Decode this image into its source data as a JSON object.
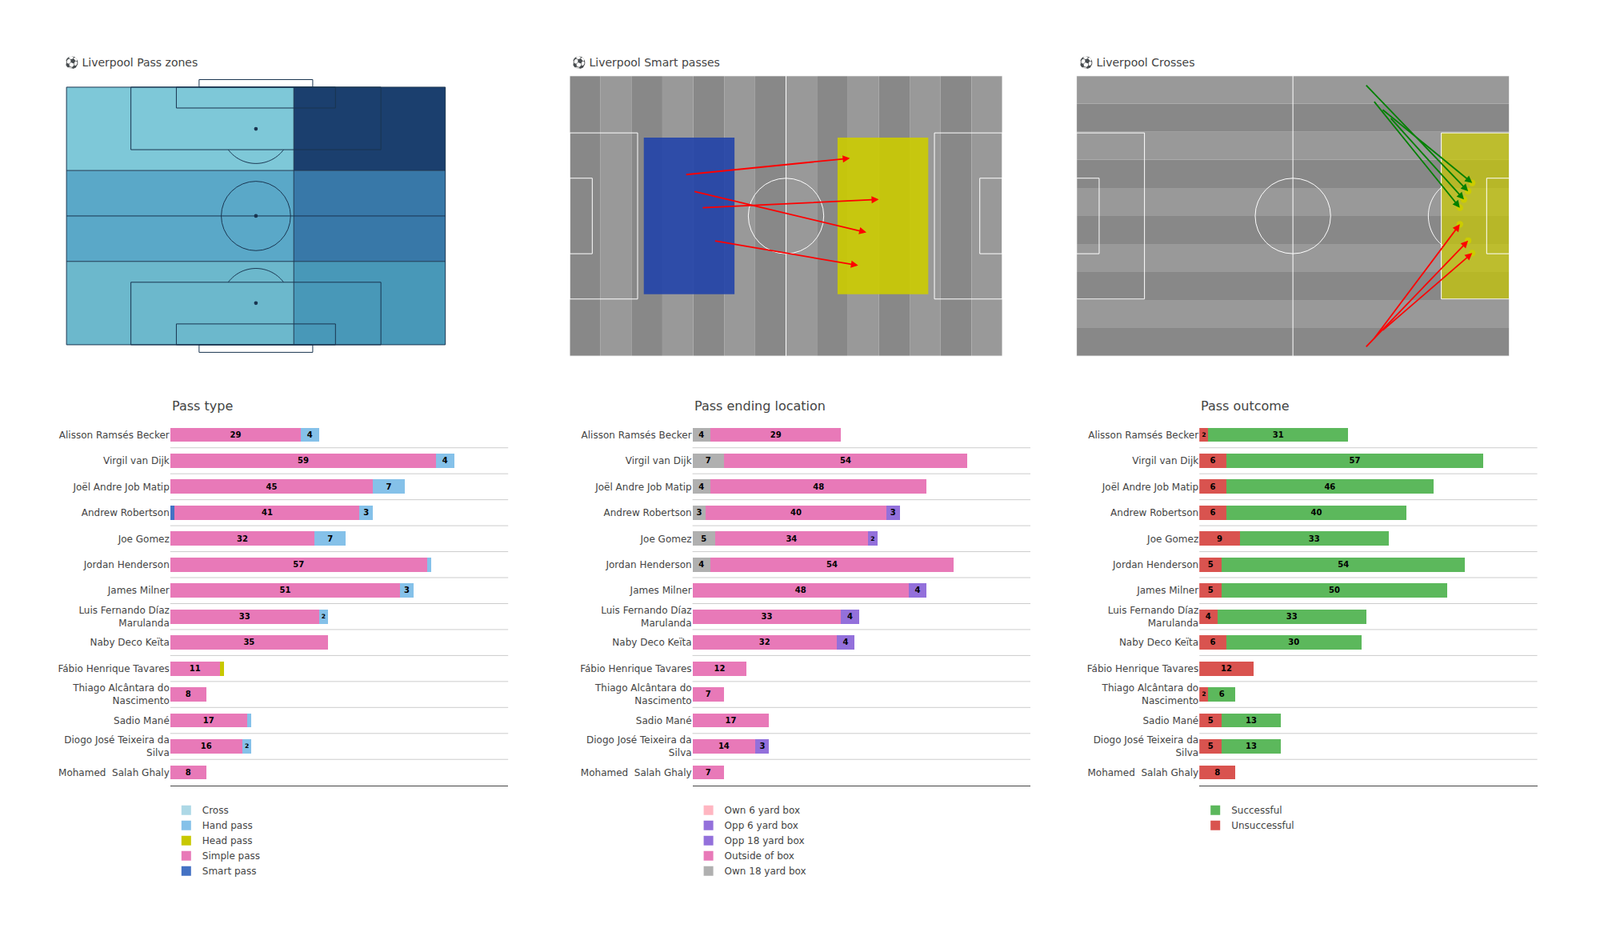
{
  "chart_data": [
    {
      "type": "pitch",
      "title": "⚽ Liverpool Pass zones",
      "colors": [
        "#7ec8d8",
        "#1b3f6e",
        "#5aa8c8",
        "#3878a8",
        "#6cb8cc",
        "#4898b8",
        "#1a3550"
      ]
    },
    {
      "type": "pitch",
      "title": "⚽ Liverpool Smart passes",
      "colors": [
        "#888888",
        "#999999",
        "#2244aa",
        "#cccc00",
        "red",
        "white"
      ]
    },
    {
      "type": "pitch",
      "title": "⚽ Liverpool Crosses",
      "colors": [
        "#888888",
        "#999999",
        "#cccc00",
        "red",
        "green",
        "#cccc00",
        "white"
      ]
    },
    {
      "type": "bar",
      "title": "Pass type",
      "orientation": "horizontal",
      "stacked": true,
      "categories": [
        "Alisson Ramsés Becker",
        "Virgil van Dijk",
        "Joël Andre Job Matip",
        "Andrew Robertson",
        "Joe Gomez",
        "Jordan Henderson",
        "James Milner",
        "Luis Fernando Díaz\nMarulanda",
        "Naby Deco Keïta",
        "Fábio Henrique Tavares",
        "Thiago Alcântara do\nNascimento",
        "Sadio Mané",
        "Diogo José Teixeira da\nSilva",
        "Mohamed  Salah Ghaly"
      ],
      "series": [
        {
          "name": "Smart pass",
          "color": "#4472c4",
          "values": [
            0,
            0,
            0,
            1,
            0,
            0,
            0,
            0,
            0,
            0,
            0,
            0,
            0,
            0
          ],
          "value_labels": [
            null,
            null,
            null,
            null,
            null,
            null,
            null,
            null,
            null,
            null,
            null,
            null,
            null,
            null
          ]
        },
        {
          "name": "Simple pass",
          "color": "#e879b8",
          "values": [
            29,
            59,
            45,
            41,
            32,
            57,
            51,
            33,
            35,
            11,
            8,
            17,
            16,
            8
          ],
          "value_labels": [
            "29",
            "59",
            "45",
            "41",
            "32",
            "57",
            "51",
            "33",
            "35",
            "11",
            "8",
            "17",
            "16",
            "8"
          ]
        },
        {
          "name": "Head pass",
          "color": "#c8c800",
          "values": [
            0,
            0,
            0,
            0,
            0,
            0,
            0,
            0,
            0,
            1,
            0,
            0,
            0,
            0
          ],
          "value_labels": [
            null,
            null,
            null,
            null,
            null,
            null,
            null,
            null,
            null,
            null,
            null,
            null,
            null,
            null
          ]
        },
        {
          "name": "Hand pass",
          "color": "#85c1e9",
          "values": [
            4,
            4,
            7,
            3,
            7,
            1,
            3,
            2,
            0,
            0,
            0,
            1,
            2,
            0
          ],
          "value_labels": [
            "4",
            "4",
            "7",
            "3",
            "7",
            null,
            "3",
            "2",
            null,
            null,
            null,
            null,
            "2",
            null
          ]
        },
        {
          "name": "Cross",
          "color": "#add8e6",
          "values": [
            0,
            0,
            0,
            0,
            0,
            0,
            0,
            0,
            0,
            0,
            0,
            0,
            0,
            0
          ],
          "value_labels": [
            null,
            null,
            null,
            null,
            null,
            null,
            null,
            null,
            null,
            null,
            null,
            null,
            null,
            null
          ]
        }
      ],
      "xlim": [
        0,
        75
      ],
      "xticks": [],
      "tick_labels": "y",
      "grid": true,
      "legend": "bottom",
      "data_labels": true
    },
    {
      "type": "bar",
      "title": "Pass ending location",
      "orientation": "horizontal",
      "stacked": true,
      "categories": [
        "Alisson Ramsés Becker",
        "Virgil van Dijk",
        "Joël Andre Job Matip",
        "Andrew Robertson",
        "Joe Gomez",
        "Jordan Henderson",
        "James Milner",
        "Luis Fernando Díaz\nMarulanda",
        "Naby Deco Keïta",
        "Fábio Henrique Tavares",
        "Thiago Alcântara do\nNascimento",
        "Sadio Mané",
        "Diogo José Teixeira da\nSilva",
        "Mohamed  Salah Ghaly"
      ],
      "series": [
        {
          "name": "Own 18 yard box",
          "color": "#b0b0b0",
          "values": [
            4,
            7,
            4,
            3,
            5,
            4,
            0,
            0,
            0,
            0,
            0,
            0,
            0,
            0
          ],
          "value_labels": [
            "4",
            "7",
            "4",
            "3",
            "5",
            "4",
            null,
            null,
            null,
            null,
            null,
            null,
            null,
            null
          ]
        },
        {
          "name": "Outside of box",
          "color": "#e879b8",
          "values": [
            29,
            54,
            48,
            40,
            34,
            54,
            48,
            33,
            32,
            12,
            7,
            17,
            14,
            7
          ],
          "value_labels": [
            "29",
            "54",
            "48",
            "40",
            "34",
            "54",
            "48",
            "33",
            "32",
            "12",
            "7",
            "17",
            "14",
            "7"
          ]
        },
        {
          "name": "Opp 18 yard box",
          "color": "#9370db",
          "values": [
            0,
            0,
            0,
            3,
            0,
            0,
            4,
            4,
            4,
            0,
            0,
            0,
            3,
            0
          ],
          "value_labels": [
            null,
            null,
            null,
            "3",
            null,
            null,
            "4",
            "4",
            "4",
            null,
            null,
            null,
            "3",
            null
          ]
        },
        {
          "name": "Opp 6 yard box",
          "color": "#9370db",
          "values": [
            0,
            0,
            0,
            0,
            2,
            0,
            0,
            0,
            0,
            0,
            0,
            0,
            0,
            0
          ],
          "value_labels": [
            null,
            null,
            null,
            null,
            "2",
            null,
            null,
            null,
            null,
            null,
            null,
            null,
            null,
            null
          ]
        },
        {
          "name": "Own 6 yard box",
          "color": "#ffb6c1",
          "values": [
            0,
            0,
            0,
            0,
            0,
            0,
            0,
            0,
            0,
            0,
            0,
            0,
            0,
            0
          ],
          "value_labels": [
            null,
            null,
            null,
            null,
            null,
            null,
            null,
            null,
            null,
            null,
            null,
            null,
            null,
            null
          ]
        }
      ],
      "xlim": [
        0,
        75
      ],
      "xticks": [],
      "tick_labels": "y",
      "grid": true,
      "legend": "bottom",
      "data_labels": true
    },
    {
      "type": "bar",
      "title": "Pass outcome",
      "orientation": "horizontal",
      "stacked": true,
      "categories": [
        "Alisson Ramsés Becker",
        "Virgil van Dijk",
        "Joël Andre Job Matip",
        "Andrew Robertson",
        "Joe Gomez",
        "Jordan Henderson",
        "James Milner",
        "Luis Fernando Díaz\nMarulanda",
        "Naby Deco Keïta",
        "Fábio Henrique Tavares",
        "Thiago Alcântara do\nNascimento",
        "Sadio Mané",
        "Diogo José Teixeira da\nSilva",
        "Mohamed  Salah Ghaly"
      ],
      "series": [
        {
          "name": "Unsuccessful",
          "color": "#d9534f",
          "values": [
            2,
            6,
            6,
            6,
            9,
            5,
            5,
            4,
            6,
            12,
            2,
            5,
            5,
            8
          ],
          "value_labels": [
            "2",
            "6",
            "6",
            "6",
            "9",
            "5",
            "5",
            "4",
            "6",
            "12",
            "2",
            "5",
            "5",
            "8"
          ]
        },
        {
          "name": "Successful",
          "color": "#5cb85c",
          "values": [
            31,
            57,
            46,
            40,
            33,
            54,
            50,
            33,
            30,
            0,
            6,
            13,
            13,
            0
          ],
          "value_labels": [
            "31",
            "57",
            "46",
            "40",
            "33",
            "54",
            "50",
            "33",
            "30",
            null,
            "6",
            "13",
            "13",
            null
          ]
        }
      ],
      "xlim": [
        0,
        75
      ],
      "xticks": [],
      "tick_labels": "y",
      "grid": true,
      "legend": "bottom",
      "data_labels": true
    }
  ]
}
